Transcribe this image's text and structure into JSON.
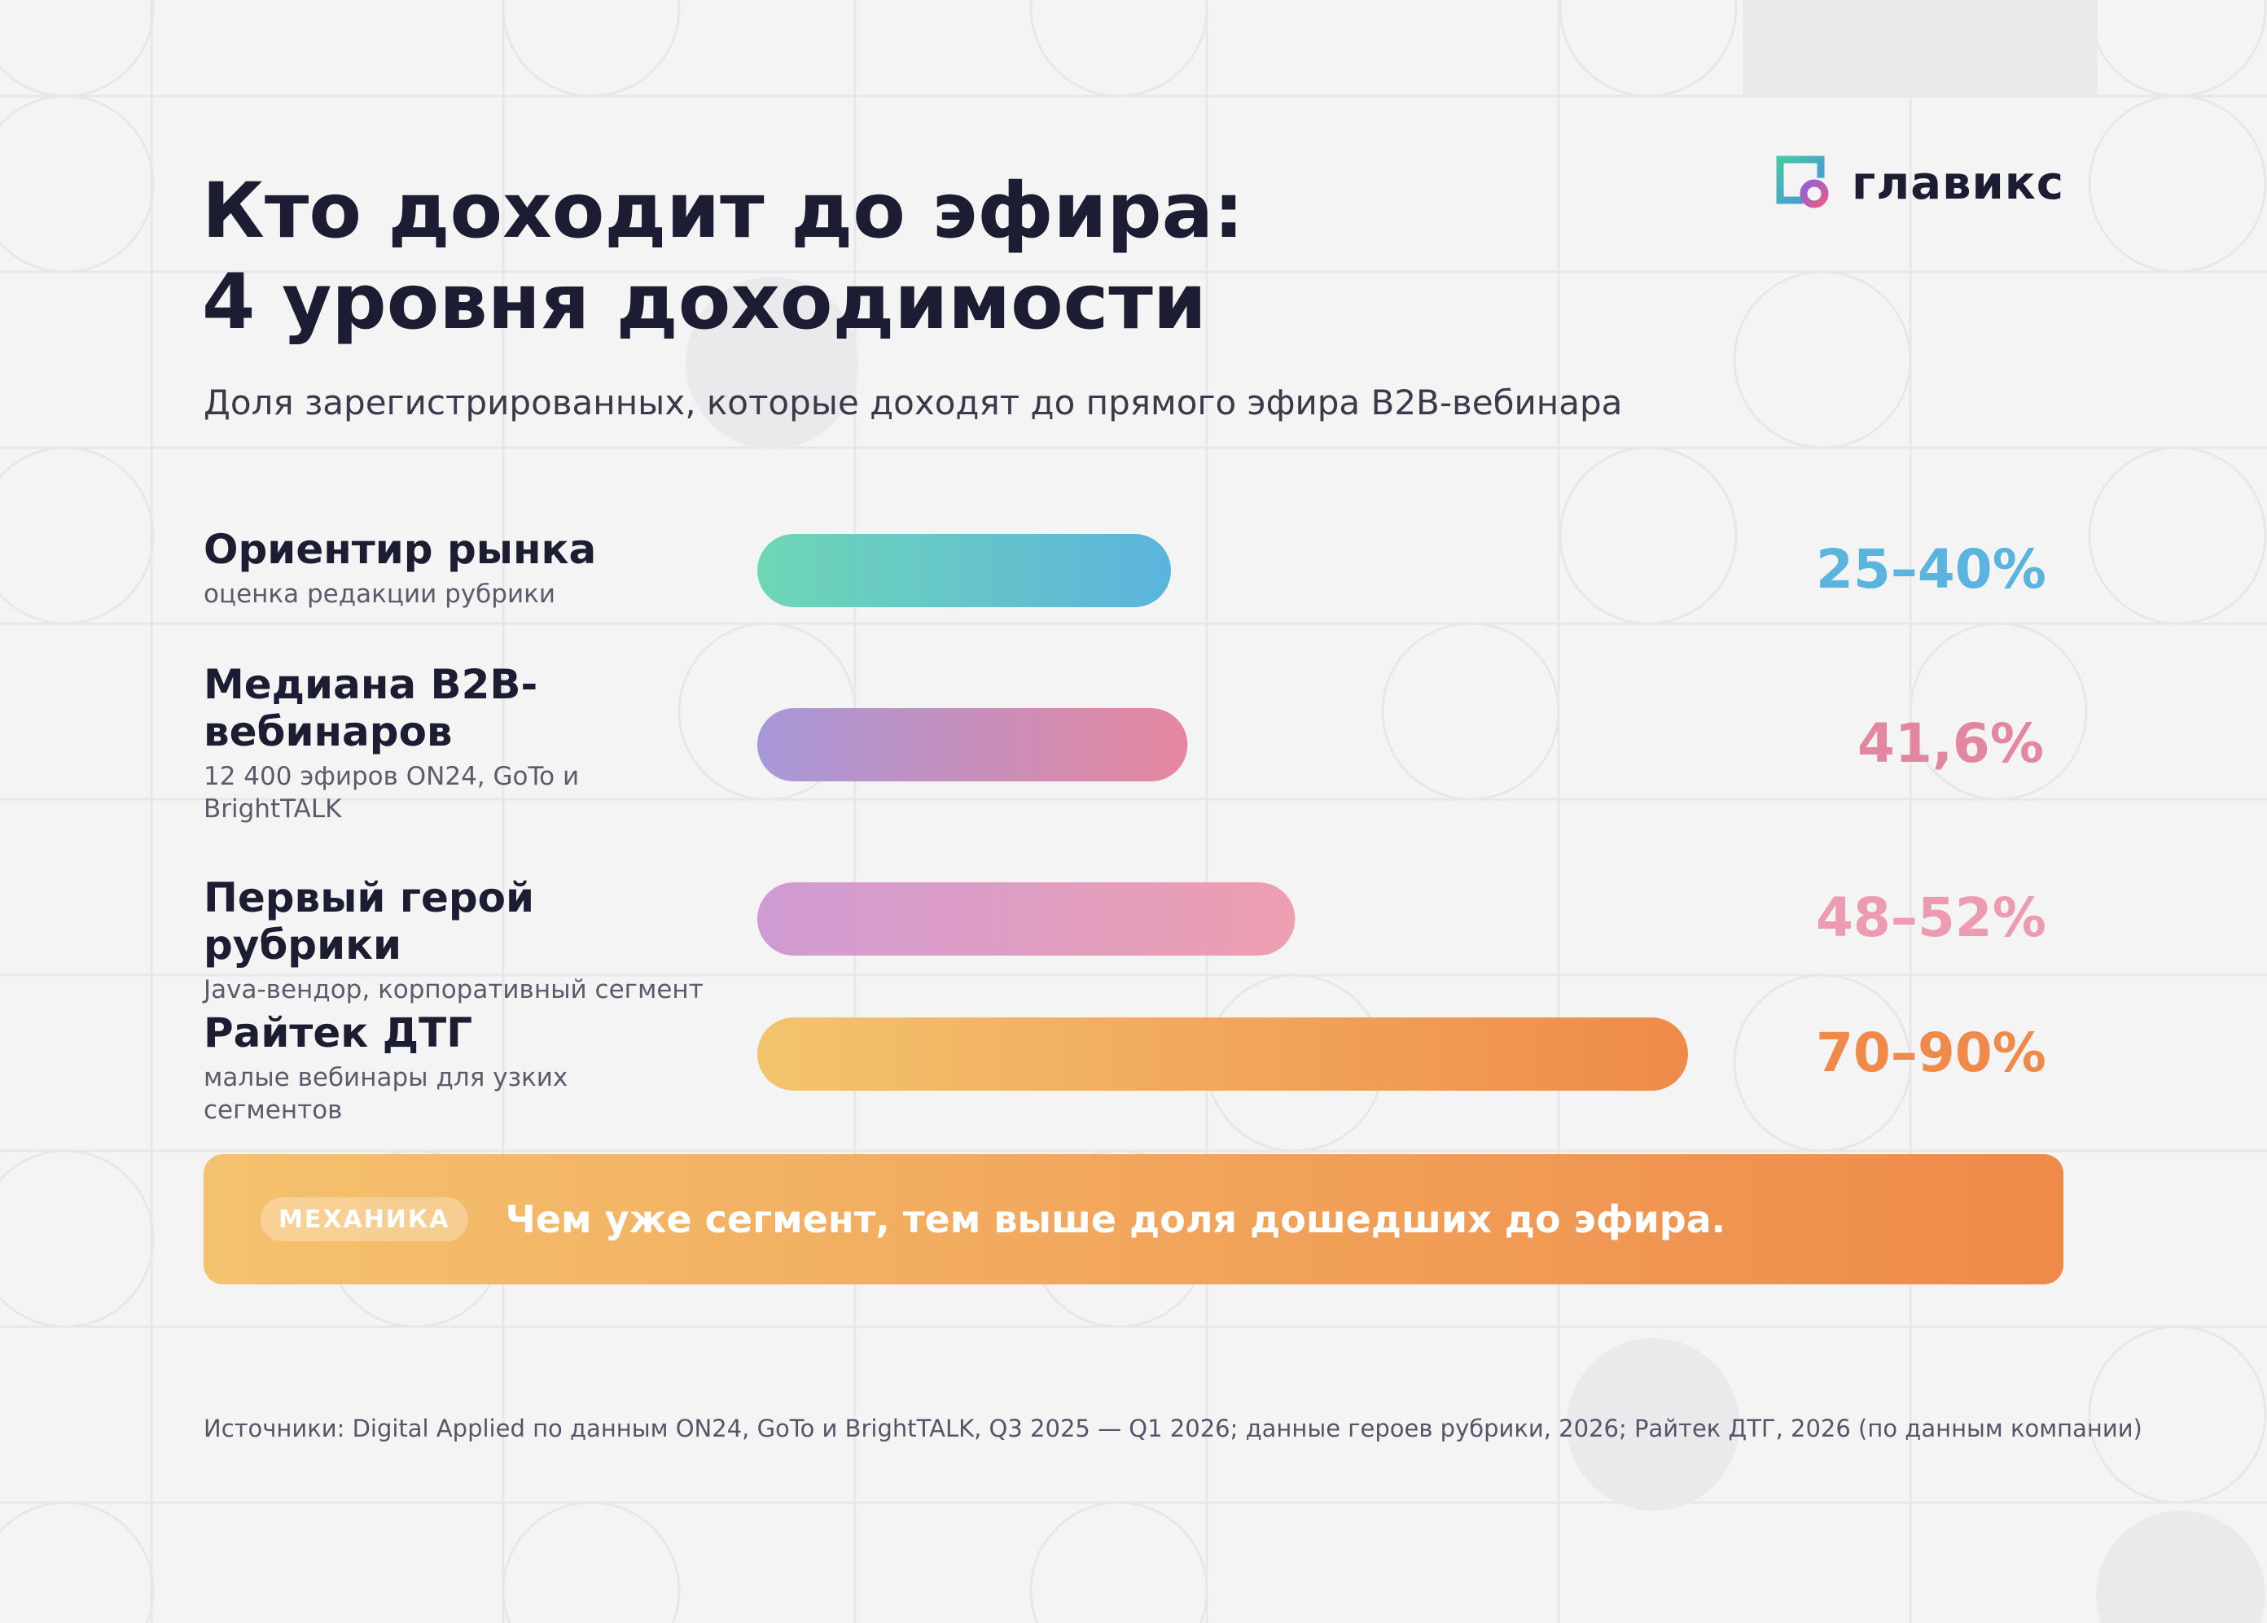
{
  "brand": {
    "name": "главикс"
  },
  "title_lines": [
    "Кто доходит до эфира:",
    "4 уровня доходимости"
  ],
  "subtitle": "Доля зарегистрированных, которые доходят до прямого эфира B2B-вебинара",
  "colors": {
    "text": "#1c1c33",
    "background": "#f4f4f5",
    "blue": "#5bb4dd",
    "pink": "#e3869f",
    "rose": "#ec9bb0",
    "orange": "#ef8a4a"
  },
  "chart_data": {
    "type": "bar",
    "orientation": "horizontal",
    "xlim": [
      0,
      100
    ],
    "categories": [
      "Ориентир рынка",
      "Медиана B2B-вебинаров",
      "Первый герой рубрики",
      "Райтек ДТГ"
    ],
    "values": [
      40,
      41.6,
      52,
      90
    ],
    "ranges": [
      [
        25,
        40
      ],
      [
        41.6,
        41.6
      ],
      [
        48,
        52
      ],
      [
        70,
        90
      ]
    ],
    "value_labels": [
      "25–40%",
      "41,6%",
      "48–52%",
      "70–90%"
    ],
    "rows": [
      {
        "name": "Ориентир рынка",
        "note": "оценка редакции рубрики",
        "label": "25–40%",
        "color_start": "#6fd6b6",
        "color_end": "#5bb4dd",
        "label_color": "#5bb4dd"
      },
      {
        "name": "Медиана B2B-вебинаров",
        "note": "12 400 эфиров ON24, GoTo и BrightTALK",
        "label": "41,6%",
        "color_start": "#a798d9",
        "color_end": "#e6879f",
        "label_color": "#e3869f"
      },
      {
        "name": "Первый герой рубрики",
        "note": "Java-вендор, корпоративный сегмент",
        "label": "48–52%",
        "color_start": "#cf9bd3",
        "color_end": "#ee9fb0",
        "label_color": "#ec9bb0"
      },
      {
        "name": "Райтек ДТГ",
        "note": "малые вебинары для узких сегментов",
        "label": "70–90%",
        "color_start": "#f3c46e",
        "color_end": "#ef8a4a",
        "label_color": "#ef8a4a"
      }
    ]
  },
  "callout": {
    "tag": "МЕХАНИКА",
    "text": "Чем уже сегмент, тем выше доля дошедших до эфира.",
    "color_start": "#f4c26e",
    "color_end": "#ef8a4a"
  },
  "source": "Источники: Digital Applied по данным ON24, GoTo и BrightTALK, Q3 2025 — Q1 2026; данные героев рубрики, 2026; Райтек ДТГ, 2026 (по данным компании)"
}
